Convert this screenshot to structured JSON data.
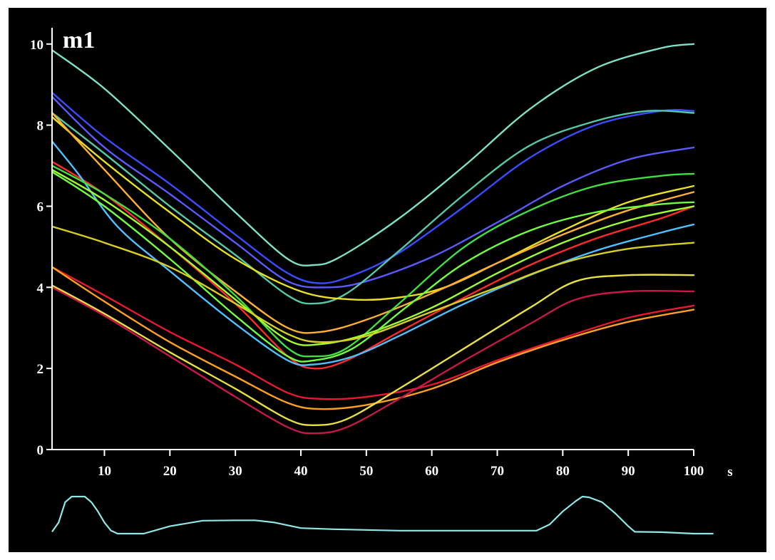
{
  "chart_data": {
    "type": "line",
    "panel_label": "m1",
    "xlabel": "s",
    "ylabel": "",
    "xlim": [
      2,
      100
    ],
    "ylim": [
      0,
      10.4
    ],
    "x_ticks": [
      10,
      20,
      30,
      40,
      50,
      60,
      70,
      80,
      90,
      100
    ],
    "y_ticks": [
      0,
      2,
      4,
      6,
      8,
      10
    ],
    "grid": false,
    "legend": "none",
    "series": [
      {
        "color": "#7fe0c8",
        "points": [
          [
            2,
            9.85
          ],
          [
            10,
            8.9
          ],
          [
            20,
            7.4
          ],
          [
            30,
            5.85
          ],
          [
            38,
            4.7
          ],
          [
            42,
            4.55
          ],
          [
            46,
            4.75
          ],
          [
            55,
            5.7
          ],
          [
            65,
            7.0
          ],
          [
            75,
            8.4
          ],
          [
            85,
            9.4
          ],
          [
            95,
            9.9
          ],
          [
            100,
            10.0
          ]
        ]
      },
      {
        "color": "#3a4cff",
        "points": [
          [
            2,
            8.8
          ],
          [
            10,
            7.7
          ],
          [
            20,
            6.55
          ],
          [
            30,
            5.3
          ],
          [
            38,
            4.35
          ],
          [
            43,
            4.1
          ],
          [
            48,
            4.3
          ],
          [
            55,
            4.85
          ],
          [
            65,
            6.0
          ],
          [
            75,
            7.2
          ],
          [
            85,
            8.0
          ],
          [
            95,
            8.35
          ],
          [
            100,
            8.35
          ]
        ]
      },
      {
        "color": "#5a5aff",
        "points": [
          [
            2,
            8.7
          ],
          [
            10,
            7.45
          ],
          [
            20,
            6.3
          ],
          [
            30,
            5.1
          ],
          [
            38,
            4.15
          ],
          [
            44,
            4.0
          ],
          [
            50,
            4.15
          ],
          [
            60,
            4.75
          ],
          [
            70,
            5.6
          ],
          [
            80,
            6.5
          ],
          [
            90,
            7.15
          ],
          [
            100,
            7.45
          ]
        ]
      },
      {
        "color": "#56c8a8",
        "points": [
          [
            2,
            8.3
          ],
          [
            10,
            7.3
          ],
          [
            20,
            6.0
          ],
          [
            30,
            4.8
          ],
          [
            38,
            3.8
          ],
          [
            42,
            3.6
          ],
          [
            47,
            3.85
          ],
          [
            55,
            4.9
          ],
          [
            65,
            6.3
          ],
          [
            75,
            7.5
          ],
          [
            85,
            8.1
          ],
          [
            93,
            8.35
          ],
          [
            100,
            8.3
          ]
        ]
      },
      {
        "color": "#e8e020",
        "points": [
          [
            2,
            8.2
          ],
          [
            10,
            7.1
          ],
          [
            20,
            5.85
          ],
          [
            30,
            4.7
          ],
          [
            40,
            3.9
          ],
          [
            48,
            3.7
          ],
          [
            55,
            3.75
          ],
          [
            62,
            4.0
          ],
          [
            70,
            4.6
          ],
          [
            80,
            5.4
          ],
          [
            90,
            6.1
          ],
          [
            100,
            6.5
          ]
        ]
      },
      {
        "color": "#ffb030",
        "points": [
          [
            2,
            8.3
          ],
          [
            10,
            6.9
          ],
          [
            20,
            5.2
          ],
          [
            30,
            3.9
          ],
          [
            38,
            3.0
          ],
          [
            43,
            2.9
          ],
          [
            50,
            3.2
          ],
          [
            60,
            3.85
          ],
          [
            70,
            4.6
          ],
          [
            80,
            5.3
          ],
          [
            90,
            5.9
          ],
          [
            100,
            6.35
          ]
        ]
      },
      {
        "color": "#ff2a2a",
        "points": [
          [
            2,
            7.1
          ],
          [
            10,
            6.3
          ],
          [
            20,
            5.0
          ],
          [
            30,
            3.6
          ],
          [
            38,
            2.3
          ],
          [
            42,
            2.0
          ],
          [
            47,
            2.2
          ],
          [
            55,
            2.9
          ],
          [
            65,
            3.75
          ],
          [
            75,
            4.55
          ],
          [
            85,
            5.2
          ],
          [
            95,
            5.7
          ],
          [
            100,
            6.0
          ]
        ]
      },
      {
        "color": "#4fc0ff",
        "points": [
          [
            2,
            7.6
          ],
          [
            6,
            6.8
          ],
          [
            12,
            5.5
          ],
          [
            20,
            4.4
          ],
          [
            30,
            3.1
          ],
          [
            38,
            2.2
          ],
          [
            42,
            2.1
          ],
          [
            48,
            2.3
          ],
          [
            55,
            2.8
          ],
          [
            65,
            3.6
          ],
          [
            75,
            4.3
          ],
          [
            85,
            4.9
          ],
          [
            95,
            5.35
          ],
          [
            100,
            5.55
          ]
        ]
      },
      {
        "color": "#40e040",
        "points": [
          [
            2,
            7.0
          ],
          [
            10,
            6.3
          ],
          [
            20,
            5.2
          ],
          [
            30,
            3.8
          ],
          [
            38,
            2.5
          ],
          [
            42,
            2.3
          ],
          [
            47,
            2.5
          ],
          [
            55,
            3.6
          ],
          [
            65,
            5.0
          ],
          [
            75,
            5.9
          ],
          [
            85,
            6.5
          ],
          [
            95,
            6.75
          ],
          [
            100,
            6.8
          ]
        ]
      },
      {
        "color": "#a0ff30",
        "points": [
          [
            2,
            6.9
          ],
          [
            10,
            6.15
          ],
          [
            20,
            5.0
          ],
          [
            30,
            3.7
          ],
          [
            38,
            2.7
          ],
          [
            43,
            2.6
          ],
          [
            50,
            2.85
          ],
          [
            60,
            3.5
          ],
          [
            70,
            4.35
          ],
          [
            80,
            5.1
          ],
          [
            90,
            5.65
          ],
          [
            100,
            6.0
          ]
        ]
      },
      {
        "color": "#70ff40",
        "points": [
          [
            2,
            6.85
          ],
          [
            10,
            6.0
          ],
          [
            20,
            4.7
          ],
          [
            30,
            3.3
          ],
          [
            38,
            2.3
          ],
          [
            42,
            2.2
          ],
          [
            48,
            2.5
          ],
          [
            56,
            3.5
          ],
          [
            65,
            4.6
          ],
          [
            75,
            5.4
          ],
          [
            85,
            5.85
          ],
          [
            95,
            6.05
          ],
          [
            100,
            6.1
          ]
        ]
      },
      {
        "color": "#d8d020",
        "points": [
          [
            2,
            5.5
          ],
          [
            10,
            5.1
          ],
          [
            20,
            4.5
          ],
          [
            30,
            3.6
          ],
          [
            38,
            2.85
          ],
          [
            43,
            2.65
          ],
          [
            50,
            2.8
          ],
          [
            60,
            3.4
          ],
          [
            70,
            4.0
          ],
          [
            80,
            4.6
          ],
          [
            90,
            4.95
          ],
          [
            100,
            5.1
          ]
        ]
      },
      {
        "color": "#e81830",
        "points": [
          [
            2,
            4.5
          ],
          [
            10,
            3.8
          ],
          [
            20,
            2.9
          ],
          [
            30,
            2.1
          ],
          [
            38,
            1.4
          ],
          [
            43,
            1.25
          ],
          [
            50,
            1.3
          ],
          [
            60,
            1.6
          ],
          [
            70,
            2.2
          ],
          [
            80,
            2.75
          ],
          [
            90,
            3.25
          ],
          [
            100,
            3.55
          ]
        ]
      },
      {
        "color": "#ffa020",
        "points": [
          [
            2,
            4.5
          ],
          [
            10,
            3.65
          ],
          [
            20,
            2.65
          ],
          [
            30,
            1.8
          ],
          [
            38,
            1.15
          ],
          [
            43,
            1.0
          ],
          [
            50,
            1.1
          ],
          [
            60,
            1.5
          ],
          [
            70,
            2.15
          ],
          [
            80,
            2.7
          ],
          [
            90,
            3.15
          ],
          [
            100,
            3.45
          ]
        ]
      },
      {
        "color": "#e8e040",
        "points": [
          [
            2,
            4.05
          ],
          [
            10,
            3.35
          ],
          [
            20,
            2.4
          ],
          [
            30,
            1.5
          ],
          [
            38,
            0.75
          ],
          [
            42,
            0.6
          ],
          [
            47,
            0.75
          ],
          [
            55,
            1.5
          ],
          [
            65,
            2.5
          ],
          [
            75,
            3.5
          ],
          [
            82,
            4.15
          ],
          [
            90,
            4.3
          ],
          [
            100,
            4.3
          ]
        ]
      },
      {
        "color": "#c81848",
        "points": [
          [
            2,
            4.0
          ],
          [
            10,
            3.3
          ],
          [
            20,
            2.3
          ],
          [
            30,
            1.3
          ],
          [
            38,
            0.55
          ],
          [
            42,
            0.4
          ],
          [
            47,
            0.55
          ],
          [
            55,
            1.25
          ],
          [
            65,
            2.2
          ],
          [
            75,
            3.1
          ],
          [
            82,
            3.7
          ],
          [
            90,
            3.9
          ],
          [
            100,
            3.9
          ]
        ]
      }
    ],
    "trace": {
      "color": "#8fe8e8",
      "points": [
        [
          2,
          0.05
        ],
        [
          3,
          0.3
        ],
        [
          4,
          0.85
        ],
        [
          5,
          1.0
        ],
        [
          7,
          1.0
        ],
        [
          8,
          0.85
        ],
        [
          9,
          0.6
        ],
        [
          10,
          0.3
        ],
        [
          11,
          0.08
        ],
        [
          12,
          0.0
        ],
        [
          16,
          0.0
        ],
        [
          20,
          0.2
        ],
        [
          25,
          0.35
        ],
        [
          30,
          0.36
        ],
        [
          33,
          0.36
        ],
        [
          36,
          0.3
        ],
        [
          40,
          0.15
        ],
        [
          45,
          0.12
        ],
        [
          55,
          0.08
        ],
        [
          60,
          0.08
        ],
        [
          76,
          0.08
        ],
        [
          78,
          0.25
        ],
        [
          80,
          0.6
        ],
        [
          82,
          0.88
        ],
        [
          83,
          1.0
        ],
        [
          84,
          0.98
        ],
        [
          86,
          0.85
        ],
        [
          88,
          0.55
        ],
        [
          90,
          0.2
        ],
        [
          91,
          0.05
        ],
        [
          95,
          0.04
        ],
        [
          100,
          0.0
        ],
        [
          103,
          0.0
        ]
      ]
    }
  }
}
